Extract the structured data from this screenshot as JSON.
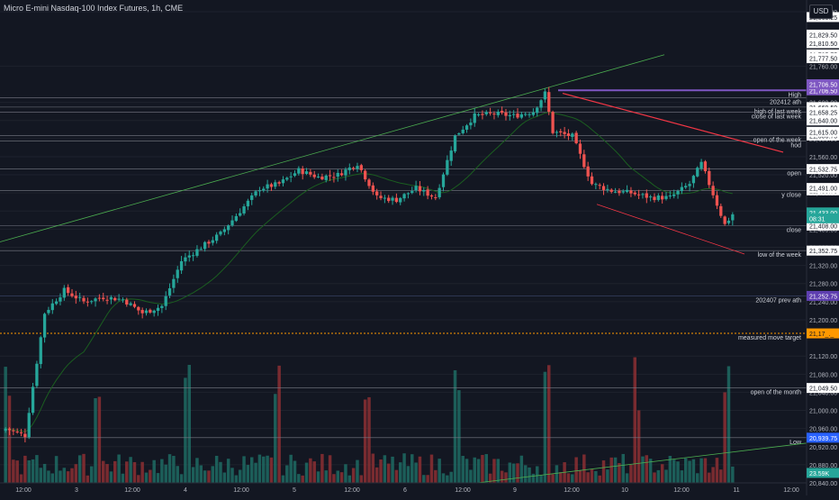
{
  "header": {
    "title": "Micro E-mini Nasdaq-100 Index Futures, 1h, CME",
    "currency": "USD"
  },
  "colors": {
    "background": "#131722",
    "up": "#26a69a",
    "down": "#ef5350",
    "volume_up": "#1e6b63",
    "volume_down": "#8c2f33",
    "ma": "#1b5e20",
    "trendline": "#4caf50",
    "channel": "#f23645",
    "level": "#787b86",
    "high_line": "#7e57c2",
    "target_line": "#ff9800"
  },
  "chart_data": {
    "type": "candlestick",
    "x_ticks": [
      "12:00",
      "3",
      "12:00",
      "4",
      "12:00",
      "5",
      "12:00",
      "6",
      "12:00",
      "9",
      "12:00",
      "10",
      "12:00",
      "11",
      "12:00"
    ],
    "price_ticks": [
      "21,880.00",
      "21,760.00",
      "21,680.00",
      "21,640.00",
      "21,600.00",
      "21,560.00",
      "21,520.00",
      "21,480.00",
      "21,440.00",
      "21,400.00",
      "21,360.00",
      "21,320.00",
      "21,280.00",
      "21,240.00",
      "21,200.00",
      "21,120.00",
      "21,080.00",
      "21,040.00",
      "21,000.00",
      "20,960.00",
      "20,920.00",
      "20,880.00",
      "20,840.00"
    ],
    "ylim": [
      20840,
      21890
    ],
    "anchors": [
      {
        "idx": 0,
        "close": 20960
      },
      {
        "idx": 5,
        "close": 20945
      },
      {
        "idx": 10,
        "close": 21215
      },
      {
        "idx": 15,
        "close": 21265
      },
      {
        "idx": 20,
        "close": 21240
      },
      {
        "idx": 25,
        "close": 21250
      },
      {
        "idx": 30,
        "close": 21245
      },
      {
        "idx": 35,
        "close": 21215
      },
      {
        "idx": 40,
        "close": 21230
      },
      {
        "idx": 45,
        "close": 21330
      },
      {
        "idx": 50,
        "close": 21360
      },
      {
        "idx": 55,
        "close": 21390
      },
      {
        "idx": 60,
        "close": 21440
      },
      {
        "idx": 65,
        "close": 21490
      },
      {
        "idx": 70,
        "close": 21500
      },
      {
        "idx": 75,
        "close": 21530
      },
      {
        "idx": 80,
        "close": 21515
      },
      {
        "idx": 85,
        "close": 21520
      },
      {
        "idx": 90,
        "close": 21545
      },
      {
        "idx": 95,
        "close": 21470
      },
      {
        "idx": 100,
        "close": 21465
      },
      {
        "idx": 105,
        "close": 21490
      },
      {
        "idx": 110,
        "close": 21470
      },
      {
        "idx": 115,
        "close": 21605
      },
      {
        "idx": 120,
        "close": 21650
      },
      {
        "idx": 125,
        "close": 21655
      },
      {
        "idx": 130,
        "close": 21650
      },
      {
        "idx": 135,
        "close": 21660
      },
      {
        "idx": 138,
        "close": 21700
      },
      {
        "idx": 140,
        "close": 21615
      },
      {
        "idx": 145,
        "close": 21605
      },
      {
        "idx": 150,
        "close": 21500
      },
      {
        "idx": 155,
        "close": 21485
      },
      {
        "idx": 160,
        "close": 21480
      },
      {
        "idx": 165,
        "close": 21470
      },
      {
        "idx": 170,
        "close": 21470
      },
      {
        "idx": 175,
        "close": 21500
      },
      {
        "idx": 178,
        "close": 21545
      },
      {
        "idx": 180,
        "close": 21500
      },
      {
        "idx": 184,
        "close": 21410
      },
      {
        "idx": 186,
        "close": 21433
      }
    ],
    "levels": [
      {
        "label": "High",
        "price": 21706.5,
        "tag": "21,706.50",
        "kind": "high"
      },
      {
        "label": "202412 ath",
        "price": 21690,
        "tag": "",
        "kind": "plain"
      },
      {
        "label": "high of last week",
        "price": 21669.5,
        "tag": "21,669.50",
        "kind": "plain"
      },
      {
        "label": "close of last week",
        "price": 21658.25,
        "tag": "21,658.25",
        "kind": "plain"
      },
      {
        "label": "open of the week",
        "price": 21606.75,
        "tag": "21,606.75",
        "kind": "plain"
      },
      {
        "label": "hod",
        "price": 21595,
        "tag": "",
        "kind": "plain"
      },
      {
        "label": "open",
        "price": 21532.75,
        "tag": "21,532.75",
        "kind": "plain"
      },
      {
        "label": "y close",
        "price": 21485.75,
        "tag": "21,485.75",
        "kind": "plain"
      },
      {
        "label": "close",
        "price": 21408.0,
        "tag": "21,408.00",
        "kind": "plain"
      },
      {
        "label": "low of the week",
        "price": 21352.75,
        "tag": "21,352.75",
        "kind": "plain"
      },
      {
        "label": "202407 prev ath",
        "price": 21252.75,
        "tag": "21,252.75",
        "kind": "prev"
      },
      {
        "label": "measured move target",
        "price": 21170,
        "tag": "21,17_._",
        "kind": "target"
      },
      {
        "label": "open of the month",
        "price": 21049.5,
        "tag": "21,049.50",
        "kind": "plain"
      },
      {
        "label": "Low",
        "price": 20939.75,
        "tag": "20,939.75",
        "kind": "low"
      }
    ],
    "extra_tags": [
      {
        "text": "21,868.25",
        "price": 21868.25
      },
      {
        "text": "21,829.50",
        "price": 21829.5
      },
      {
        "text": "21,810.50",
        "price": 21810.5
      },
      {
        "text": "21,785.75",
        "price": 21785.75
      },
      {
        "text": "21,777.50",
        "price": 21777.5
      },
      {
        "text": "21,706.50",
        "price": 21720,
        "kind": "high"
      },
      {
        "text": "21,640.00",
        "price": 21640
      },
      {
        "text": "21,615.00",
        "price": 21615
      },
      {
        "text": "21,491.00",
        "price": 21491
      },
      {
        "text": "21,433.00",
        "price": 21437,
        "kind": "current"
      },
      {
        "text": "08:31",
        "price": 21424,
        "kind": "timer"
      },
      {
        "text": "23.59K",
        "price": 20862,
        "kind": "volume"
      }
    ]
  }
}
